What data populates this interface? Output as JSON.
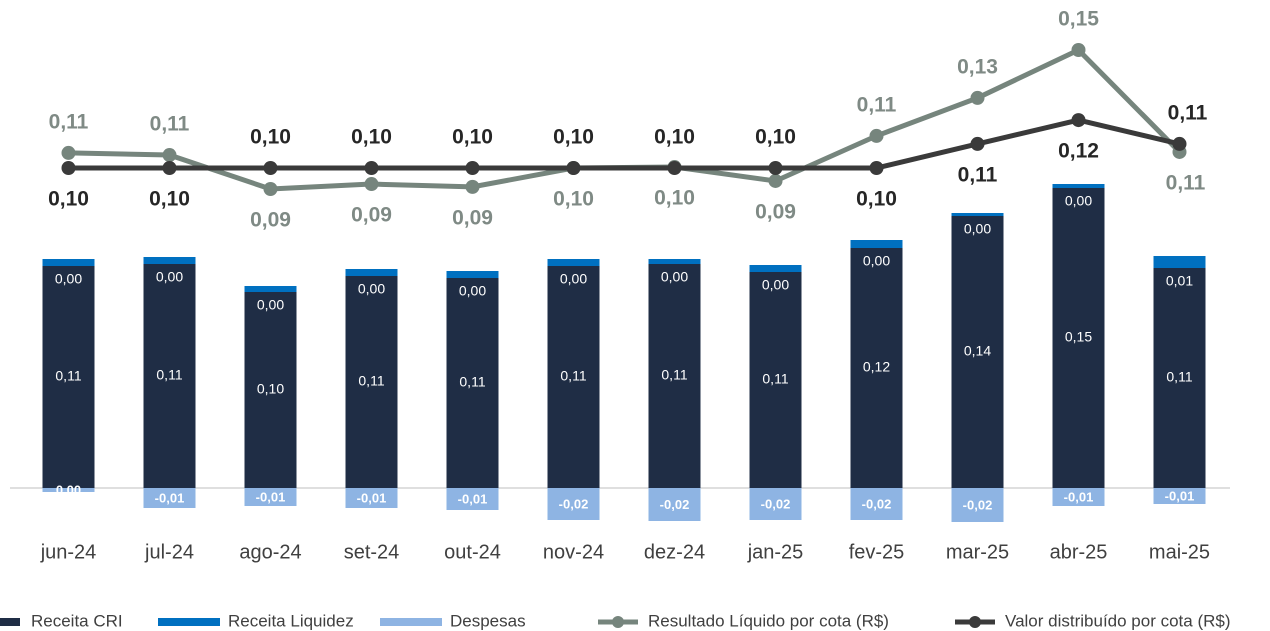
{
  "chart_data": {
    "type": "bar-line",
    "categories": [
      "jun-24",
      "jul-24",
      "ago-24",
      "set-24",
      "out-24",
      "nov-24",
      "dez-24",
      "jan-25",
      "fev-25",
      "mar-25",
      "abr-25",
      "mai-25"
    ],
    "ylim": [
      -0.05,
      0.2
    ],
    "y2lim": [
      0.05,
      0.17
    ],
    "series": [
      {
        "name": "Receita CRI",
        "color": "#1f2d45",
        "kind": "bar",
        "values": [
          0.111,
          0.112,
          0.098,
          0.106,
          0.105,
          0.111,
          0.112,
          0.108,
          0.12,
          0.136,
          0.15,
          0.11
        ],
        "value_labels": [
          "0,11",
          "0,11",
          "0,10",
          "0,11",
          "0,11",
          "0,11",
          "0,11",
          "0,11",
          "0,12",
          "0,14",
          "0,15",
          "0,11"
        ]
      },
      {
        "name": "Receita Liquidez",
        "color": "#0070c0",
        "kind": "bar",
        "values": [
          0.0035,
          0.0035,
          0.003,
          0.0035,
          0.0035,
          0.0035,
          0.0025,
          0.0035,
          0.004,
          0.0015,
          0.002,
          0.006
        ],
        "value_labels": [
          "0,00",
          "0,00",
          "0,00",
          "0,00",
          "0,00",
          "0,00",
          "0,00",
          "0,00",
          "0,00",
          "0,00",
          "0,00",
          "0,01"
        ]
      },
      {
        "name": "Despesas",
        "color": "#8eb4e3",
        "kind": "bar",
        "values": [
          -0.002,
          -0.01,
          -0.009,
          -0.01,
          -0.011,
          -0.016,
          -0.0165,
          -0.016,
          -0.016,
          -0.017,
          -0.009,
          -0.008
        ],
        "value_labels": [
          "0,00",
          "-0,01",
          "-0,01",
          "-0,01",
          "-0,01",
          "-0,02",
          "-0,02",
          "-0,02",
          "-0,02",
          "-0,02",
          "-0,01",
          "-0,01"
        ]
      },
      {
        "name": "Resultado Líquido por cota (R$)",
        "color": "#76857d",
        "label_color": "#7f8a85",
        "kind": "line",
        "axis": "y2",
        "values": [
          0.1064,
          0.1055,
          0.0911,
          0.0932,
          0.092,
          0.1,
          0.1004,
          0.0945,
          0.1136,
          0.1297,
          0.15,
          0.1068
        ],
        "value_labels": [
          "0,11",
          "0,11",
          "0,09",
          "0,09",
          "0,09",
          "0,10",
          "0,10",
          "0,09",
          "0,11",
          "0,13",
          "0,15",
          "0,11"
        ]
      },
      {
        "name": "Valor distribuído por cota (R$)",
        "color": "#3a3a3a",
        "label_color": "#262626",
        "kind": "line",
        "axis": "y2",
        "values": [
          0.1,
          0.1,
          0.1,
          0.1,
          0.1,
          0.1,
          0.1,
          0.1,
          0.1,
          0.1102,
          0.1203,
          0.1102
        ],
        "value_labels": [
          "0,10",
          "0,10",
          "0,10",
          "0,10",
          "0,10",
          "0,10",
          "0,10",
          "0,10",
          "0,10",
          "0,11",
          "0,12",
          "0,11"
        ]
      }
    ]
  }
}
